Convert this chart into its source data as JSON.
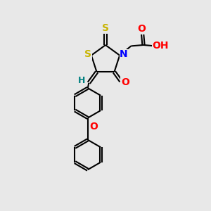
{
  "bg_color": "#e8e8e8",
  "bond_color": "#000000",
  "S_color": "#c8b400",
  "N_color": "#0000ff",
  "O_color": "#ff0000",
  "H_label_color": "#008080",
  "line_width": 1.5,
  "fig_size": [
    3.0,
    3.0
  ],
  "dpi": 100,
  "xlim": [
    0,
    10
  ],
  "ylim": [
    0,
    10
  ]
}
